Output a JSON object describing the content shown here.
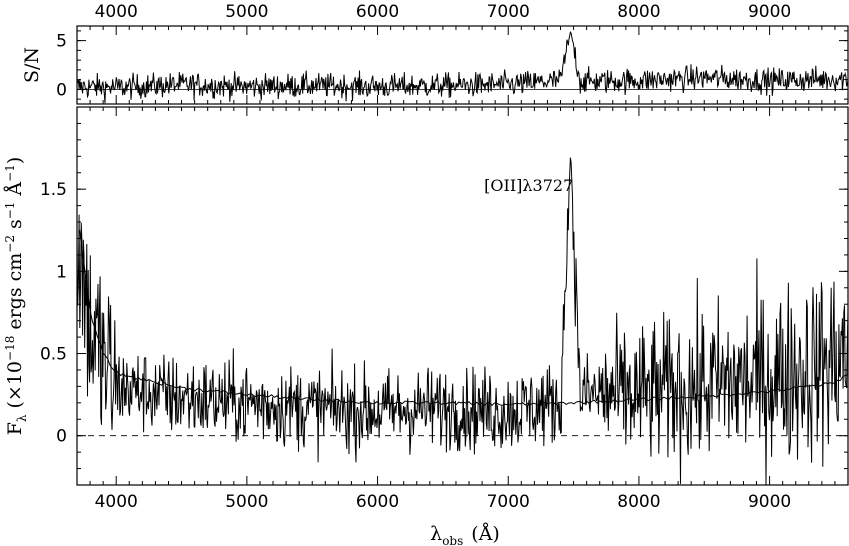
{
  "chart_data": [
    {
      "panel": "top",
      "type": "line",
      "ylabel": "S/N",
      "xlim": [
        3700,
        9600
      ],
      "ylim": [
        -1.5,
        6.5
      ],
      "x_ticks": [
        4000,
        5000,
        6000,
        7000,
        8000,
        9000
      ],
      "x_tick_labels": [
        "4000",
        "5000",
        "6000",
        "7000",
        "8000",
        "9000"
      ],
      "y_ticks": [
        0,
        5
      ],
      "y_tick_labels": [
        "0",
        "5"
      ],
      "series": [
        {
          "x": [
            3700,
            4000,
            4500,
            5000,
            5500,
            6000,
            6500,
            7000,
            7400,
            7478,
            7550,
            8000,
            8500,
            9000,
            9600
          ],
          "y": [
            0.3,
            0.2,
            0.5,
            0.3,
            0.4,
            0.3,
            0.4,
            0.5,
            0.9,
            6.0,
            0.8,
            0.9,
            1.2,
            0.9,
            1.1
          ]
        }
      ],
      "grid": false
    },
    {
      "panel": "bottom",
      "type": "line",
      "xlabel_main": "λ",
      "xlabel_sub": "obs",
      "xlabel_unit": "(Å)",
      "ylabel_main": "F",
      "ylabel_sub": "λ",
      "ylabel_unit_a": "(×10",
      "ylabel_exp1": "−18",
      "ylabel_unit_b": "ergs cm",
      "ylabel_exp2": "−2",
      "ylabel_unit_c": "s",
      "ylabel_exp3": "−1",
      "ylabel_unit_d": "Å",
      "ylabel_exp4": "−1",
      "ylabel_unit_e": ")",
      "xlim": [
        3700,
        9600
      ],
      "ylim": [
        -0.3,
        2.0
      ],
      "x_ticks": [
        4000,
        5000,
        6000,
        7000,
        8000,
        9000
      ],
      "x_tick_labels": [
        "4000",
        "5000",
        "6000",
        "7000",
        "8000",
        "9000"
      ],
      "y_ticks": [
        0,
        0.5,
        1,
        1.5
      ],
      "y_tick_labels": [
        "0",
        "0.5",
        "1",
        "1.5"
      ],
      "zero_line": "dashed",
      "series": [
        {
          "name": "flux",
          "x": [
            3720,
            3800,
            3900,
            4000,
            4500,
            5000,
            5500,
            6000,
            6500,
            7000,
            7400,
            7478,
            7550,
            8000,
            8500,
            9000,
            9500,
            9600
          ],
          "y": [
            1.2,
            0.7,
            0.5,
            0.35,
            0.28,
            0.25,
            0.22,
            0.2,
            0.22,
            0.2,
            0.25,
            1.73,
            0.3,
            0.3,
            0.35,
            0.4,
            0.5,
            0.6
          ]
        },
        {
          "name": "error",
          "x": [
            3720,
            3760,
            3800,
            3900,
            4000,
            4500,
            5000,
            5500,
            6000,
            6500,
            7000,
            7500,
            8000,
            8500,
            9000,
            9500,
            9600
          ],
          "y": [
            1.25,
            1.0,
            0.75,
            0.5,
            0.38,
            0.29,
            0.25,
            0.22,
            0.2,
            0.2,
            0.19,
            0.2,
            0.22,
            0.24,
            0.27,
            0.32,
            0.38
          ]
        }
      ],
      "annotations": [
        {
          "text": "[OII]λ3727",
          "x": 7478,
          "y": 1.5
        }
      ],
      "grid": false
    }
  ]
}
